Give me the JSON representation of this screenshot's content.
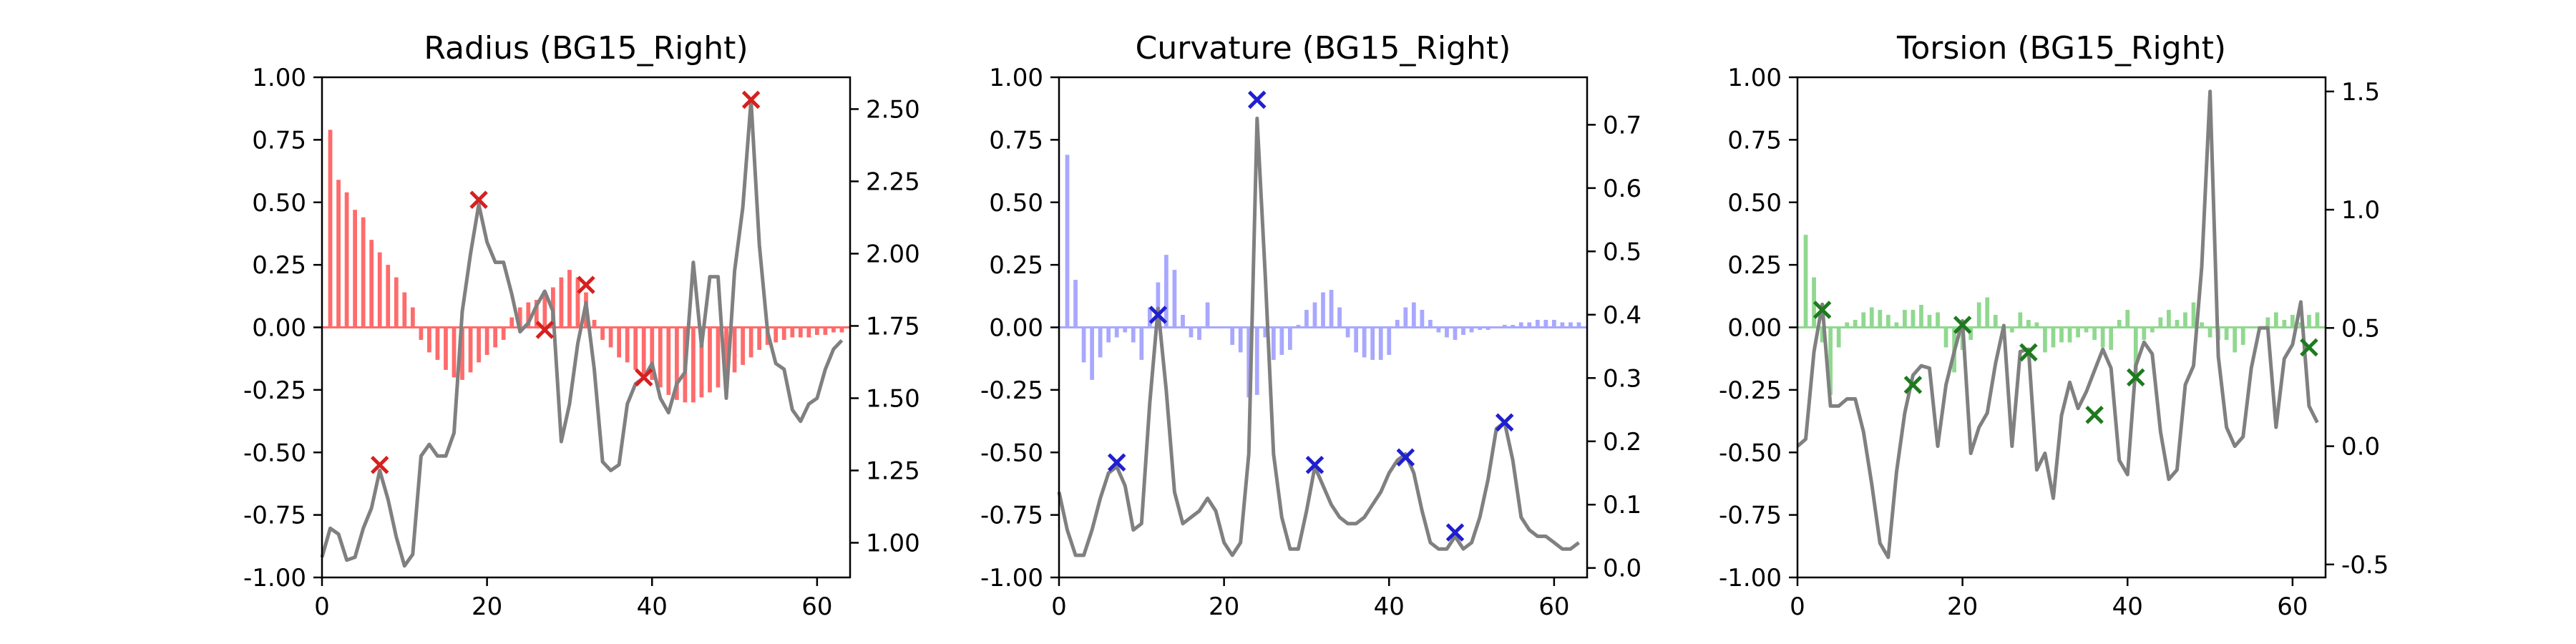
{
  "chart_data": [
    {
      "type": "bar+line",
      "title": "Radius (BG15_Right)",
      "xlim": [
        0,
        64
      ],
      "x_ticks": [
        0,
        20,
        40,
        60
      ],
      "left_ylim": [
        -1.0,
        1.0
      ],
      "left_ticks": [
        "1.00",
        "0.75",
        "0.50",
        "0.25",
        "0.00",
        "-0.25",
        "-0.50",
        "-0.75",
        "-1.00"
      ],
      "left_tick_values": [
        1.0,
        0.75,
        0.5,
        0.25,
        0.0,
        -0.25,
        -0.5,
        -0.75,
        -1.0
      ],
      "right_ylim": [
        0.88,
        2.61
      ],
      "right_ticks": [
        "1.00",
        "1.25",
        "1.50",
        "1.75",
        "2.00",
        "2.25",
        "2.50"
      ],
      "right_tick_values": [
        1.0,
        1.25,
        1.5,
        1.75,
        2.0,
        2.25,
        2.5
      ],
      "bar_color": "#ff6b6b",
      "marker_color": "#d62020",
      "line_color": "#808080",
      "bars": {
        "x": [
          1,
          2,
          3,
          4,
          5,
          6,
          7,
          8,
          9,
          10,
          11,
          12,
          13,
          14,
          15,
          16,
          17,
          18,
          19,
          20,
          21,
          22,
          23,
          24,
          25,
          26,
          27,
          28,
          29,
          30,
          31,
          32,
          33,
          34,
          35,
          36,
          37,
          38,
          39,
          40,
          41,
          42,
          43,
          44,
          45,
          46,
          47,
          48,
          49,
          50,
          51,
          52,
          53,
          54,
          55,
          56,
          57,
          58,
          59,
          60,
          61,
          62,
          63
        ],
        "values": [
          0.79,
          0.59,
          0.54,
          0.47,
          0.44,
          0.35,
          0.3,
          0.25,
          0.2,
          0.14,
          0.08,
          -0.05,
          -0.1,
          -0.13,
          -0.17,
          -0.2,
          -0.21,
          -0.18,
          -0.14,
          -0.11,
          -0.08,
          -0.05,
          0.04,
          0.08,
          0.1,
          0.11,
          0.13,
          0.16,
          0.2,
          0.23,
          0.2,
          0.14,
          0.03,
          -0.05,
          -0.08,
          -0.12,
          -0.14,
          -0.17,
          -0.2,
          -0.21,
          -0.24,
          -0.27,
          -0.29,
          -0.3,
          -0.3,
          -0.28,
          -0.26,
          -0.24,
          -0.21,
          -0.18,
          -0.15,
          -0.12,
          -0.09,
          -0.07,
          -0.06,
          -0.05,
          -0.04,
          -0.04,
          -0.04,
          -0.03,
          -0.03,
          -0.02,
          -0.02
        ]
      },
      "line": {
        "x": [
          0,
          1,
          2,
          3,
          4,
          5,
          6,
          7,
          8,
          9,
          10,
          11,
          12,
          13,
          14,
          15,
          16,
          17,
          18,
          19,
          20,
          21,
          22,
          23,
          24,
          25,
          26,
          27,
          28,
          29,
          30,
          31,
          32,
          33,
          34,
          35,
          36,
          37,
          38,
          39,
          40,
          41,
          42,
          43,
          44,
          45,
          46,
          47,
          48,
          49,
          50,
          51,
          52,
          53,
          54,
          55,
          56,
          57,
          58,
          59,
          60,
          61,
          62,
          63
        ],
        "values": [
          0.95,
          1.05,
          1.03,
          0.94,
          0.95,
          1.05,
          1.12,
          1.25,
          1.15,
          1.02,
          0.92,
          0.96,
          1.3,
          1.34,
          1.3,
          1.3,
          1.38,
          1.8,
          2.0,
          2.17,
          2.04,
          1.97,
          1.97,
          1.86,
          1.73,
          1.76,
          1.82,
          1.87,
          1.8,
          1.35,
          1.48,
          1.69,
          1.83,
          1.6,
          1.28,
          1.25,
          1.27,
          1.48,
          1.55,
          1.57,
          1.62,
          1.5,
          1.45,
          1.55,
          1.59,
          1.97,
          1.68,
          1.92,
          1.92,
          1.5,
          1.94,
          2.16,
          2.53,
          2.03,
          1.73,
          1.62,
          1.6,
          1.46,
          1.42,
          1.48,
          1.5,
          1.6,
          1.67,
          1.7
        ]
      },
      "markers": {
        "x": [
          7,
          19,
          27,
          32,
          39,
          52
        ],
        "y": [
          -0.55,
          0.51,
          -0.01,
          0.17,
          -0.2,
          0.91
        ]
      }
    },
    {
      "type": "bar+line",
      "title": "Curvature (BG15_Right)",
      "xlim": [
        0,
        64
      ],
      "x_ticks": [
        0,
        20,
        40,
        60
      ],
      "left_ylim": [
        -1.0,
        1.0
      ],
      "left_ticks": [
        "1.00",
        "0.75",
        "0.50",
        "0.25",
        "0.00",
        "-0.25",
        "-0.50",
        "-0.75",
        "-1.00"
      ],
      "left_tick_values": [
        1.0,
        0.75,
        0.5,
        0.25,
        0.0,
        -0.25,
        -0.5,
        -0.75,
        -1.0
      ],
      "right_ylim": [
        -0.015,
        0.775
      ],
      "right_ticks": [
        "0.0",
        "0.1",
        "0.2",
        "0.3",
        "0.4",
        "0.5",
        "0.6",
        "0.7"
      ],
      "right_tick_values": [
        0.0,
        0.1,
        0.2,
        0.3,
        0.4,
        0.5,
        0.6,
        0.7
      ],
      "bar_color": "#a8a8ff",
      "marker_color": "#1f1fd0",
      "line_color": "#808080",
      "bars": {
        "x": [
          1,
          2,
          3,
          4,
          5,
          6,
          7,
          8,
          9,
          10,
          11,
          12,
          13,
          14,
          15,
          16,
          17,
          18,
          19,
          20,
          21,
          22,
          23,
          24,
          25,
          26,
          27,
          28,
          29,
          30,
          31,
          32,
          33,
          34,
          35,
          36,
          37,
          38,
          39,
          40,
          41,
          42,
          43,
          44,
          45,
          46,
          47,
          48,
          49,
          50,
          51,
          52,
          53,
          54,
          55,
          56,
          57,
          58,
          59,
          60,
          61,
          62,
          63
        ],
        "values": [
          0.69,
          0.19,
          -0.14,
          -0.21,
          -0.12,
          -0.06,
          -0.04,
          -0.02,
          -0.06,
          -0.13,
          0.08,
          0.18,
          0.29,
          0.23,
          0.05,
          -0.04,
          -0.05,
          0.1,
          0.0,
          0.0,
          -0.07,
          -0.1,
          -0.28,
          -0.27,
          -0.04,
          -0.13,
          -0.11,
          -0.09,
          0.01,
          0.07,
          0.1,
          0.14,
          0.15,
          0.08,
          -0.04,
          -0.1,
          -0.12,
          -0.13,
          -0.13,
          -0.11,
          0.03,
          0.08,
          0.1,
          0.07,
          0.03,
          -0.02,
          -0.04,
          -0.05,
          -0.03,
          -0.02,
          -0.01,
          -0.01,
          0.0,
          0.01,
          0.01,
          0.02,
          0.02,
          0.03,
          0.03,
          0.03,
          0.02,
          0.02,
          0.02
        ]
      },
      "line": {
        "x": [
          0,
          1,
          2,
          3,
          4,
          5,
          6,
          7,
          8,
          9,
          10,
          11,
          12,
          13,
          14,
          15,
          16,
          17,
          18,
          19,
          20,
          21,
          22,
          23,
          24,
          25,
          26,
          27,
          28,
          29,
          30,
          31,
          32,
          33,
          34,
          35,
          36,
          37,
          38,
          39,
          40,
          41,
          42,
          43,
          44,
          45,
          46,
          47,
          48,
          49,
          50,
          51,
          52,
          53,
          54,
          55,
          56,
          57,
          58,
          59,
          60,
          61,
          62,
          63
        ],
        "values": [
          0.12,
          0.06,
          0.02,
          0.02,
          0.06,
          0.11,
          0.15,
          0.16,
          0.13,
          0.06,
          0.07,
          0.26,
          0.41,
          0.28,
          0.12,
          0.07,
          0.08,
          0.09,
          0.11,
          0.09,
          0.04,
          0.02,
          0.04,
          0.18,
          0.71,
          0.46,
          0.18,
          0.08,
          0.03,
          0.03,
          0.09,
          0.16,
          0.13,
          0.1,
          0.08,
          0.07,
          0.07,
          0.08,
          0.1,
          0.12,
          0.15,
          0.17,
          0.18,
          0.15,
          0.09,
          0.04,
          0.03,
          0.03,
          0.05,
          0.03,
          0.04,
          0.08,
          0.14,
          0.22,
          0.23,
          0.17,
          0.08,
          0.06,
          0.05,
          0.05,
          0.04,
          0.03,
          0.03,
          0.04
        ]
      },
      "markers": {
        "x": [
          7,
          12,
          24,
          31,
          42,
          48,
          54
        ],
        "y": [
          -0.54,
          0.05,
          0.91,
          -0.55,
          -0.52,
          -0.82,
          -0.38
        ]
      }
    },
    {
      "type": "bar+line",
      "title": "Torsion (BG15_Right)",
      "xlim": [
        0,
        64
      ],
      "x_ticks": [
        0,
        20,
        40,
        60
      ],
      "left_ylim": [
        -1.0,
        1.0
      ],
      "left_ticks": [
        "1.00",
        "0.75",
        "0.50",
        "0.25",
        "0.00",
        "-0.25",
        "-0.50",
        "-0.75",
        "-1.00"
      ],
      "left_tick_values": [
        1.0,
        0.75,
        0.5,
        0.25,
        0.0,
        -0.25,
        -0.5,
        -0.75,
        -1.0
      ],
      "right_ylim": [
        -0.555,
        1.56
      ],
      "right_ticks": [
        "-0.5",
        "0.0",
        "0.5",
        "1.0",
        "1.5"
      ],
      "right_tick_values": [
        -0.5,
        0.0,
        0.5,
        1.0,
        1.5
      ],
      "bar_color": "#90d890",
      "marker_color": "#1e7a1e",
      "line_color": "#808080",
      "bars": {
        "x": [
          1,
          2,
          3,
          4,
          5,
          6,
          7,
          8,
          9,
          10,
          11,
          12,
          13,
          14,
          15,
          16,
          17,
          18,
          19,
          20,
          21,
          22,
          23,
          24,
          25,
          26,
          27,
          28,
          29,
          30,
          31,
          32,
          33,
          34,
          35,
          36,
          37,
          38,
          39,
          40,
          41,
          42,
          43,
          44,
          45,
          46,
          47,
          48,
          49,
          50,
          51,
          52,
          53,
          54,
          55,
          56,
          57,
          58,
          59,
          60,
          61,
          62,
          63
        ],
        "values": [
          0.37,
          0.2,
          -0.06,
          -0.27,
          -0.08,
          0.02,
          0.03,
          0.06,
          0.08,
          0.07,
          0.05,
          0.02,
          0.07,
          0.07,
          0.09,
          0.05,
          0.06,
          -0.08,
          -0.18,
          -0.09,
          -0.05,
          0.1,
          0.12,
          0.05,
          -0.04,
          -0.02,
          0.06,
          0.03,
          0.02,
          -0.1,
          -0.08,
          -0.06,
          -0.06,
          -0.04,
          -0.02,
          -0.05,
          -0.08,
          -0.09,
          0.03,
          0.07,
          -0.2,
          -0.05,
          -0.02,
          0.04,
          0.07,
          0.03,
          0.06,
          0.1,
          0.02,
          -0.04,
          -0.05,
          -0.05,
          -0.1,
          -0.07,
          0.0,
          0.0,
          0.04,
          0.06,
          0.03,
          0.05,
          0.02,
          0.05,
          0.06
        ]
      },
      "line": {
        "x": [
          0,
          1,
          2,
          3,
          4,
          5,
          6,
          7,
          8,
          9,
          10,
          11,
          12,
          13,
          14,
          15,
          16,
          17,
          18,
          19,
          20,
          21,
          22,
          23,
          24,
          25,
          26,
          27,
          28,
          29,
          30,
          31,
          32,
          33,
          34,
          35,
          36,
          37,
          38,
          39,
          40,
          41,
          42,
          43,
          44,
          45,
          46,
          47,
          48,
          49,
          50,
          51,
          52,
          53,
          54,
          55,
          56,
          57,
          58,
          59,
          60,
          61,
          62,
          63
        ],
        "values": [
          0.0,
          0.03,
          0.4,
          0.6,
          0.17,
          0.17,
          0.2,
          0.2,
          0.06,
          -0.16,
          -0.41,
          -0.47,
          -0.11,
          0.14,
          0.3,
          0.34,
          0.33,
          0.0,
          0.26,
          0.4,
          0.53,
          -0.03,
          0.08,
          0.14,
          0.35,
          0.51,
          0.0,
          0.4,
          0.41,
          -0.1,
          -0.03,
          -0.22,
          0.13,
          0.27,
          0.16,
          0.23,
          0.32,
          0.41,
          0.33,
          -0.06,
          -0.12,
          0.34,
          0.44,
          0.39,
          0.06,
          -0.14,
          -0.1,
          0.26,
          0.34,
          0.76,
          1.5,
          0.38,
          0.08,
          0.0,
          0.04,
          0.33,
          0.5,
          0.5,
          0.08,
          0.37,
          0.43,
          0.61,
          0.17,
          0.1
        ]
      },
      "markers": {
        "x": [
          3,
          14,
          20,
          28,
          36,
          41,
          62
        ],
        "y": [
          0.07,
          -0.23,
          0.01,
          -0.1,
          -0.35,
          -0.2,
          -0.08
        ]
      }
    }
  ]
}
